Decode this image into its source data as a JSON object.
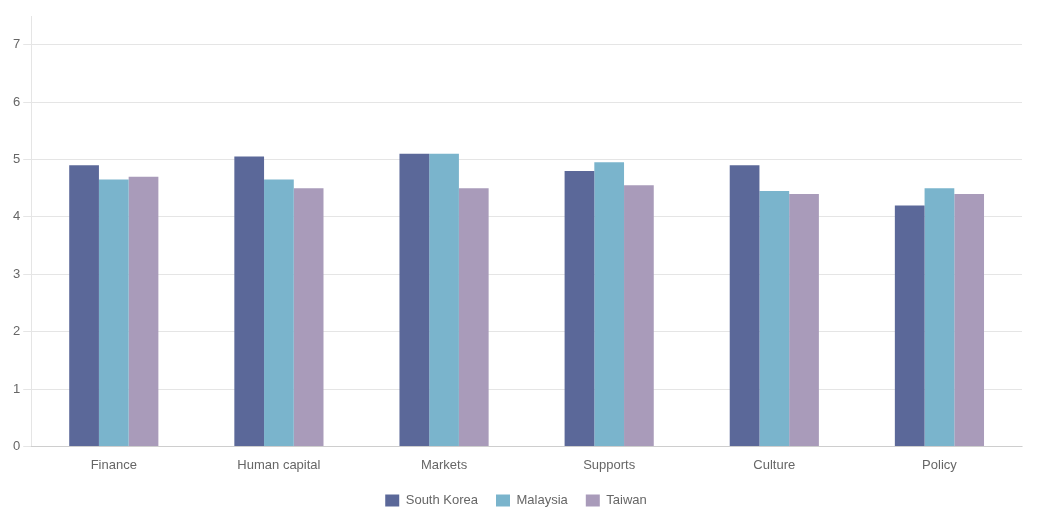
{
  "chart_data": {
    "type": "bar",
    "categories": [
      "Finance",
      "Human capital",
      "Markets",
      "Supports",
      "Culture",
      "Policy"
    ],
    "series": [
      {
        "name": "South Korea",
        "color": "#5b6899",
        "values": [
          4.9,
          5.05,
          5.1,
          4.8,
          4.9,
          4.2
        ]
      },
      {
        "name": "Malaysia",
        "color": "#7ab4cc",
        "values": [
          4.65,
          4.65,
          5.1,
          4.95,
          4.45,
          4.5
        ]
      },
      {
        "name": "Taiwan",
        "color": "#a99bba",
        "values": [
          4.7,
          4.5,
          4.5,
          4.55,
          4.4,
          4.4
        ]
      }
    ],
    "ylim": [
      0,
      7.5
    ],
    "yticks": [
      0,
      1,
      2,
      3,
      4,
      5,
      6,
      7
    ],
    "grid": true,
    "legend": "bottom"
  }
}
